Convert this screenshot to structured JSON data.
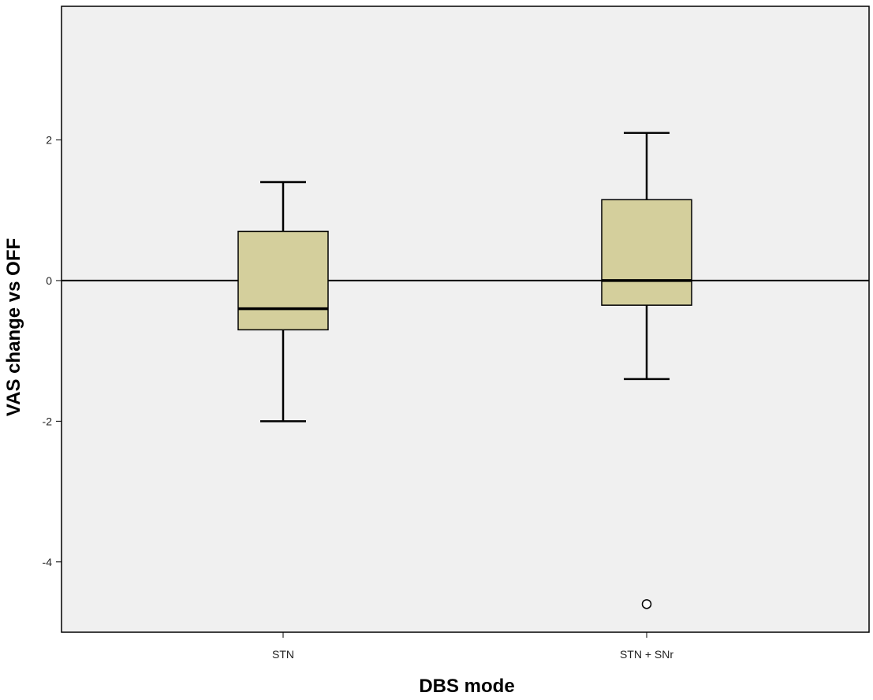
{
  "chart_data": {
    "type": "box",
    "xlabel": "DBS mode",
    "ylabel": "VAS change vs OFF",
    "ylim": [
      -5.0,
      3.9
    ],
    "yticks": [
      2,
      0,
      -2,
      -4
    ],
    "ytick_labels": [
      "2",
      "0",
      "-2",
      "-4"
    ],
    "reference_line_y": 0,
    "grid": false,
    "categories": [
      "STN",
      "STN + SNr"
    ],
    "boxes": [
      {
        "category": "STN",
        "whisker_low": -2.0,
        "q1": -0.7,
        "median": -0.4,
        "q3": 0.7,
        "whisker_high": 1.4,
        "outliers": []
      },
      {
        "category": "STN + SNr",
        "whisker_low": -1.4,
        "q1": -0.35,
        "median": 0.0,
        "q3": 1.15,
        "whisker_high": 2.1,
        "outliers": [
          -4.6
        ]
      }
    ],
    "colors": {
      "box_fill": "#d4cf9c",
      "plot_background": "#f0f0f0",
      "stroke": "#000000"
    }
  }
}
